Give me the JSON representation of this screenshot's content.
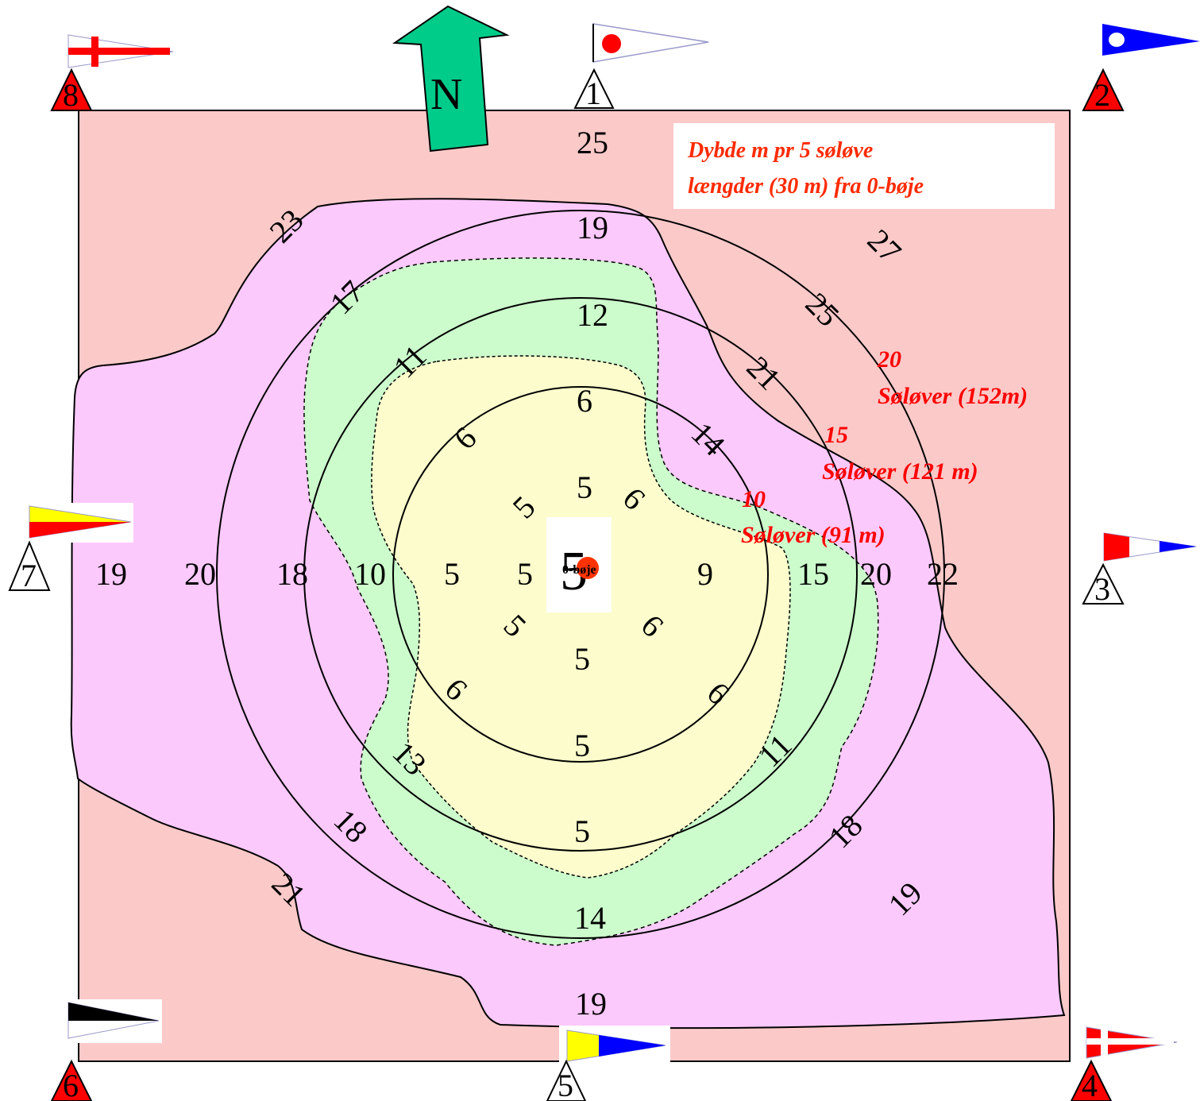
{
  "legend": {
    "line1": "Dybde m pr 5 søløve",
    "line2": "længder (30 m) fra 0-bøje"
  },
  "north_label": "N",
  "center": {
    "big": "5",
    "label": "0-bøje"
  },
  "rings": [
    {
      "num": "20",
      "text": "Søløver (152m)"
    },
    {
      "num": "15",
      "text": "Søløver (121 m)"
    },
    {
      "num": "10",
      "text": "Søløver (91 m)"
    }
  ],
  "buoys": [
    "1",
    "2",
    "3",
    "4",
    "5",
    "6",
    "7",
    "8"
  ],
  "depths": [
    "25",
    "19",
    "12",
    "6",
    "5",
    "23",
    "17",
    "11",
    "6",
    "5",
    "6",
    "27",
    "25",
    "21",
    "14",
    "19",
    "20",
    "18",
    "10",
    "5",
    "5",
    "9",
    "15",
    "20",
    "22",
    "5",
    "6",
    "5",
    "6",
    "6",
    "5",
    "13",
    "11",
    "5",
    "18",
    "18",
    "21",
    "14",
    "19",
    "19"
  ],
  "colors": {
    "outer_zone": "#fcc9c9",
    "zone_20": "#fcc9fc",
    "zone_15": "#ccfccc",
    "zone_10": "#fcfccc",
    "north_arrow": "#00cc8a",
    "buoy_red": "#ff0000",
    "legend_red": "#ff2a00"
  }
}
